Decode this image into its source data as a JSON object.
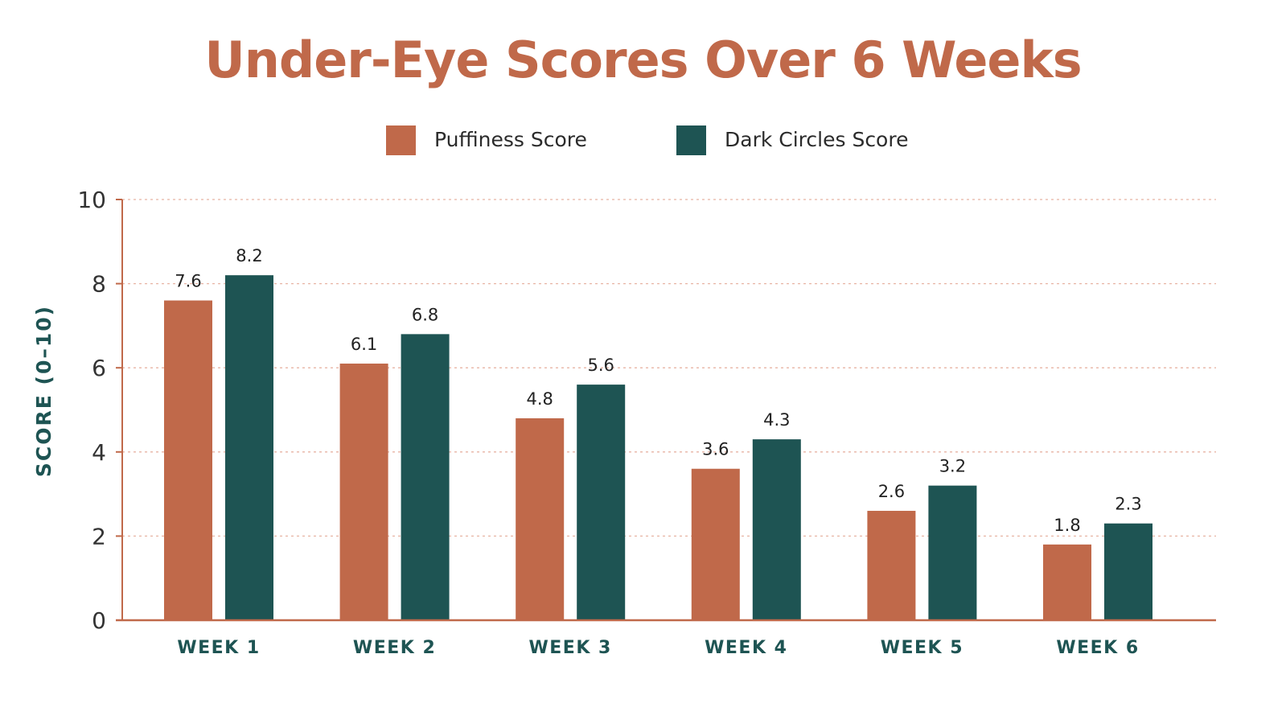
{
  "colors": {
    "puffiness": "#c0694a",
    "dark_circles": "#1e5453",
    "axis": "#c0694a",
    "gridline": "#e8b4a4",
    "title": "#c0694a",
    "ylabel": "#1e5453",
    "xticks": "#1e5453",
    "value_labels": "#222222",
    "yticks": "#333333"
  },
  "chart_data": {
    "type": "bar",
    "title": "Under-Eye Scores Over 6 Weeks",
    "xlabel": "",
    "ylabel": "SCORE (0–10)",
    "categories": [
      "WEEK 1",
      "WEEK 2",
      "WEEK 3",
      "WEEK 4",
      "WEEK 5",
      "WEEK 6"
    ],
    "series": [
      {
        "name": "Puffiness Score",
        "values": [
          7.6,
          6.1,
          4.8,
          3.6,
          2.6,
          1.8
        ]
      },
      {
        "name": "Dark Circles Score",
        "values": [
          8.2,
          6.8,
          5.6,
          4.3,
          3.2,
          2.3
        ]
      }
    ],
    "ylim": [
      0,
      10
    ],
    "yticks": [
      0,
      2,
      4,
      6,
      8,
      10
    ],
    "grid": true,
    "grid_style": "dotted horizontal",
    "legend_position": "top-center",
    "data_labels": true
  }
}
